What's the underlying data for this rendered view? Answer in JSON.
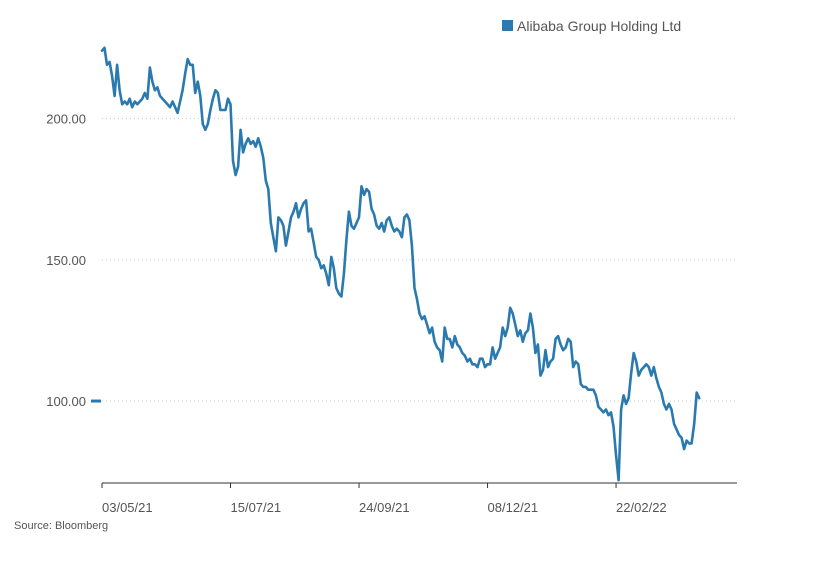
{
  "chart_data": {
    "type": "line",
    "title": "",
    "xlabel": "",
    "ylabel": "",
    "legend": {
      "position": "top-right"
    },
    "grid": {
      "horizontal": true,
      "style": "dotted"
    },
    "ylim": [
      71,
      226
    ],
    "yticks": [
      {
        "value": 200,
        "label": "200.00"
      },
      {
        "value": 150,
        "label": "150.00"
      },
      {
        "value": 100,
        "label": "100.00"
      }
    ],
    "xticks": [
      {
        "x": 0,
        "label": "03/05/21"
      },
      {
        "x": 51,
        "label": "15/07/21"
      },
      {
        "x": 102,
        "label": "24/09/21"
      },
      {
        "x": 153,
        "label": "08/12/21"
      },
      {
        "x": 204,
        "label": "22/02/22"
      }
    ],
    "xlim": [
      0,
      252
    ],
    "last_value_marker": 100,
    "series": [
      {
        "name": "Alibaba Group Holding Ltd",
        "color": "#2a7ab0",
        "values": [
          [
            0,
            224
          ],
          [
            1,
            225
          ],
          [
            2,
            219
          ],
          [
            3,
            220
          ],
          [
            4,
            215
          ],
          [
            5,
            208
          ],
          [
            6,
            219
          ],
          [
            7,
            210
          ],
          [
            8,
            205
          ],
          [
            9,
            206
          ],
          [
            10,
            205
          ],
          [
            11,
            207
          ],
          [
            12,
            204
          ],
          [
            13,
            206
          ],
          [
            14,
            205
          ],
          [
            15,
            206
          ],
          [
            16,
            207
          ],
          [
            17,
            209
          ],
          [
            18,
            207
          ],
          [
            19,
            218
          ],
          [
            20,
            213
          ],
          [
            21,
            210
          ],
          [
            22,
            211
          ],
          [
            23,
            208
          ],
          [
            24,
            207
          ],
          [
            25,
            206
          ],
          [
            26,
            205
          ],
          [
            27,
            204
          ],
          [
            28,
            206
          ],
          [
            29,
            204
          ],
          [
            30,
            202
          ],
          [
            31,
            206
          ],
          [
            32,
            210
          ],
          [
            33,
            216
          ],
          [
            34,
            221
          ],
          [
            35,
            219
          ],
          [
            36,
            219
          ],
          [
            37,
            209
          ],
          [
            38,
            213
          ],
          [
            39,
            208
          ],
          [
            40,
            198
          ],
          [
            41,
            196
          ],
          [
            42,
            198
          ],
          [
            43,
            203
          ],
          [
            44,
            207
          ],
          [
            45,
            210
          ],
          [
            46,
            209
          ],
          [
            47,
            203
          ],
          [
            48,
            203
          ],
          [
            49,
            203
          ],
          [
            50,
            207
          ],
          [
            51,
            205
          ],
          [
            52,
            185
          ],
          [
            53,
            180
          ],
          [
            54,
            183
          ],
          [
            55,
            196
          ],
          [
            56,
            188
          ],
          [
            57,
            191
          ],
          [
            58,
            193
          ],
          [
            59,
            191
          ],
          [
            60,
            192
          ],
          [
            61,
            190
          ],
          [
            62,
            193
          ],
          [
            63,
            190
          ],
          [
            64,
            186
          ],
          [
            65,
            178
          ],
          [
            66,
            175
          ],
          [
            67,
            163
          ],
          [
            68,
            158
          ],
          [
            69,
            153
          ],
          [
            70,
            165
          ],
          [
            71,
            164
          ],
          [
            72,
            162
          ],
          [
            73,
            155
          ],
          [
            74,
            160
          ],
          [
            75,
            165
          ],
          [
            76,
            167
          ],
          [
            77,
            170
          ],
          [
            78,
            165
          ],
          [
            79,
            168
          ],
          [
            80,
            170
          ],
          [
            81,
            171
          ],
          [
            82,
            160
          ],
          [
            83,
            161
          ],
          [
            84,
            156
          ],
          [
            85,
            151
          ],
          [
            86,
            150
          ],
          [
            87,
            147
          ],
          [
            88,
            148
          ],
          [
            89,
            145
          ],
          [
            90,
            141
          ],
          [
            91,
            151
          ],
          [
            92,
            147
          ],
          [
            93,
            140
          ],
          [
            94,
            138
          ],
          [
            95,
            137
          ],
          [
            96,
            145
          ],
          [
            97,
            157
          ],
          [
            98,
            167
          ],
          [
            99,
            162
          ],
          [
            100,
            161
          ],
          [
            101,
            163
          ],
          [
            102,
            165
          ],
          [
            103,
            176
          ],
          [
            104,
            173
          ],
          [
            105,
            175
          ],
          [
            106,
            174
          ],
          [
            107,
            168
          ],
          [
            108,
            166
          ],
          [
            109,
            162
          ],
          [
            110,
            161
          ],
          [
            111,
            163
          ],
          [
            112,
            160
          ],
          [
            113,
            164
          ],
          [
            114,
            165
          ],
          [
            115,
            162
          ],
          [
            116,
            160
          ],
          [
            117,
            161
          ],
          [
            118,
            160
          ],
          [
            119,
            158
          ],
          [
            120,
            165
          ],
          [
            121,
            166
          ],
          [
            122,
            164
          ],
          [
            123,
            155
          ],
          [
            124,
            140
          ],
          [
            125,
            136
          ],
          [
            126,
            131
          ],
          [
            127,
            129
          ],
          [
            128,
            130
          ],
          [
            129,
            127
          ],
          [
            130,
            124
          ],
          [
            131,
            126
          ],
          [
            132,
            121
          ],
          [
            133,
            119
          ],
          [
            134,
            118
          ],
          [
            135,
            114
          ],
          [
            136,
            126
          ],
          [
            137,
            122
          ],
          [
            138,
            122
          ],
          [
            139,
            119
          ],
          [
            140,
            123
          ],
          [
            141,
            120
          ],
          [
            142,
            119
          ],
          [
            143,
            117
          ],
          [
            144,
            116
          ],
          [
            145,
            114
          ],
          [
            146,
            115
          ],
          [
            147,
            113
          ],
          [
            148,
            113
          ],
          [
            149,
            112
          ],
          [
            150,
            115
          ],
          [
            151,
            115
          ],
          [
            152,
            112
          ],
          [
            153,
            113
          ],
          [
            154,
            113
          ],
          [
            155,
            119
          ],
          [
            156,
            115
          ],
          [
            157,
            117
          ],
          [
            158,
            119
          ],
          [
            159,
            126
          ],
          [
            160,
            123
          ],
          [
            161,
            126
          ],
          [
            162,
            133
          ],
          [
            163,
            131
          ],
          [
            164,
            127
          ],
          [
            165,
            123
          ],
          [
            166,
            125
          ],
          [
            167,
            121
          ],
          [
            168,
            124
          ],
          [
            169,
            125
          ],
          [
            170,
            131
          ],
          [
            171,
            126
          ],
          [
            172,
            117
          ],
          [
            173,
            120
          ],
          [
            174,
            109
          ],
          [
            175,
            111
          ],
          [
            176,
            118
          ],
          [
            177,
            112
          ],
          [
            178,
            114
          ],
          [
            179,
            115
          ],
          [
            180,
            122
          ],
          [
            181,
            123
          ],
          [
            182,
            120
          ],
          [
            183,
            118
          ],
          [
            184,
            119
          ],
          [
            185,
            122
          ],
          [
            186,
            121
          ],
          [
            187,
            112
          ],
          [
            188,
            114
          ],
          [
            189,
            113
          ],
          [
            190,
            106
          ],
          [
            191,
            105
          ],
          [
            192,
            105
          ],
          [
            193,
            104
          ],
          [
            194,
            104
          ],
          [
            195,
            104
          ],
          [
            196,
            102
          ],
          [
            197,
            98
          ],
          [
            198,
            97
          ],
          [
            199,
            96
          ],
          [
            200,
            97
          ],
          [
            201,
            95
          ],
          [
            202,
            96
          ],
          [
            203,
            91
          ],
          [
            204,
            81
          ],
          [
            205,
            72
          ],
          [
            206,
            97
          ],
          [
            207,
            102
          ],
          [
            208,
            99
          ],
          [
            209,
            101
          ],
          [
            210,
            110
          ],
          [
            211,
            117
          ],
          [
            212,
            114
          ],
          [
            213,
            109
          ],
          [
            214,
            111
          ],
          [
            215,
            112
          ],
          [
            216,
            113
          ],
          [
            217,
            112
          ],
          [
            218,
            109
          ],
          [
            219,
            112
          ],
          [
            220,
            108
          ],
          [
            221,
            105
          ],
          [
            222,
            103
          ],
          [
            223,
            99
          ],
          [
            224,
            97
          ],
          [
            225,
            99
          ],
          [
            226,
            97
          ],
          [
            227,
            92
          ],
          [
            228,
            90
          ],
          [
            229,
            88
          ],
          [
            230,
            87
          ],
          [
            231,
            83
          ],
          [
            232,
            86
          ],
          [
            233,
            85
          ],
          [
            234,
            85
          ],
          [
            235,
            92
          ],
          [
            236,
            103
          ],
          [
            237,
            101
          ]
        ]
      }
    ]
  },
  "source_text": "Source: Bloomberg"
}
